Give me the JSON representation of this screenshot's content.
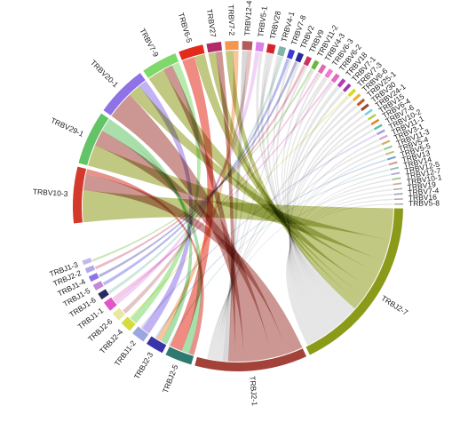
{
  "chart_data": {
    "type": "chord",
    "title": "",
    "groups": {
      "trbv": [
        "TRBV10-3",
        "TRBV29-1",
        "TRBV20-1",
        "TRBV7-9",
        "TRBV6-5",
        "TRBV27",
        "TRBV7-2",
        "TRBV12-4",
        "TRBV5-1",
        "TRBV28",
        "TRBV4-1",
        "TRBV7-8",
        "TRBV2",
        "TRBV9",
        "TRBV11-2",
        "TRBV4-3",
        "TRBV6-3",
        "TRBV6-2",
        "TRBV18",
        "TRBV7-1",
        "TRBV7-3",
        "TRBV6-6",
        "TRBV25-1",
        "TRBV30",
        "TRBV24-1",
        "TRBV15",
        "TRBV6-4",
        "TRBV7-6",
        "TRBV10-2",
        "TRBV11-1",
        "TRBV3-1",
        "TRBV11-3",
        "TRBV5-4",
        "TRBV5-5",
        "TRBV13",
        "TRBV14",
        "TRBV12-5",
        "TRBV12-7",
        "TRBV10-1",
        "TRBV19",
        "TRBV7-4",
        "TRBV16",
        "TRBV5-8"
      ],
      "trbj": [
        "TRBJ1-3",
        "TRBJ2-2",
        "TRBJ1-4",
        "TRBJ1-5",
        "TRBJ1-6",
        "TRBJ1-1",
        "TRBJ2-6",
        "TRBJ2-4",
        "TRBJ1-2",
        "TRBJ2-3",
        "TRBJ2-5",
        "TRBJ2-1",
        "TRBJ2-7"
      ]
    },
    "segments": [
      {
        "label": "TRBV10-3",
        "size": 5.0,
        "color": "#d43a2c"
      },
      {
        "label": "TRBV29-1",
        "size": 4.8,
        "color": "#62c466"
      },
      {
        "label": "TRBV20-1",
        "size": 4.6,
        "color": "#8e72e6"
      },
      {
        "label": "TRBV7-9",
        "size": 3.2,
        "color": "#7ed86a"
      },
      {
        "label": "TRBV6-5",
        "size": 2.2,
        "color": "#e32b1c"
      },
      {
        "label": "TRBV27",
        "size": 1.3,
        "color": "#b02c68"
      },
      {
        "label": "TRBV7-2",
        "size": 1.2,
        "color": "#f4964e"
      },
      {
        "label": "TRBV12-4",
        "size": 0.9,
        "color": "#b45a5a"
      },
      {
        "label": "TRBV5-1",
        "size": 0.7,
        "color": "#d982e8"
      },
      {
        "label": "TRBV28",
        "size": 0.7,
        "color": "#d4232b"
      },
      {
        "label": "TRBV4-1",
        "size": 0.6,
        "color": "#7fb6a8"
      },
      {
        "label": "TRBV7-8",
        "size": 0.5,
        "color": "#3a3ad4"
      },
      {
        "label": "TRBV2",
        "size": 0.5,
        "color": "#2a2a9a"
      },
      {
        "label": "TRBV9",
        "size": 0.45,
        "color": "#c8365a"
      },
      {
        "label": "TRBV11-2",
        "size": 0.4,
        "color": "#6fb43c"
      },
      {
        "label": "TRBV4-3",
        "size": 0.4,
        "color": "#e06ab0"
      },
      {
        "label": "TRBV6-3",
        "size": 0.4,
        "color": "#f07ad0"
      },
      {
        "label": "TRBV6-2",
        "size": 0.4,
        "color": "#e26ac0"
      },
      {
        "label": "TRBV18",
        "size": 0.35,
        "color": "#b83ab8"
      },
      {
        "label": "TRBV7-1",
        "size": 0.3,
        "color": "#9a38b0"
      },
      {
        "label": "TRBV7-3",
        "size": 0.3,
        "color": "#d8d82a"
      },
      {
        "label": "TRBV6-6",
        "size": 0.25,
        "color": "#f0b030"
      },
      {
        "label": "TRBV25-1",
        "size": 0.25,
        "color": "#c05830"
      },
      {
        "label": "TRBV30",
        "size": 0.25,
        "color": "#9a4a2a"
      },
      {
        "label": "TRBV24-1",
        "size": 0.2,
        "color": "#70d0e0"
      },
      {
        "label": "TRBV15",
        "size": 0.2,
        "color": "#b0d040"
      },
      {
        "label": "TRBV6-4",
        "size": 0.2,
        "color": "#e08030"
      },
      {
        "label": "TRBV7-6",
        "size": 0.2,
        "color": "#60c0a0"
      },
      {
        "label": "TRBV10-2",
        "size": 0.2,
        "color": "#a0a0e0"
      },
      {
        "label": "TRBV11-1",
        "size": 0.18,
        "color": "#e0a0d0"
      },
      {
        "label": "TRBV3-1",
        "size": 0.18,
        "color": "#d0b060"
      },
      {
        "label": "TRBV11-3",
        "size": 0.18,
        "color": "#9ad09a"
      },
      {
        "label": "TRBV5-4",
        "size": 0.16,
        "color": "#c0c070"
      },
      {
        "label": "TRBV5-5",
        "size": 0.16,
        "color": "#70a0d0"
      },
      {
        "label": "TRBV13",
        "size": 0.15,
        "color": "#d09090"
      },
      {
        "label": "TRBV14",
        "size": 0.15,
        "color": "#90c0c0"
      },
      {
        "label": "TRBV12-5",
        "size": 0.14,
        "color": "#b0a0d0"
      },
      {
        "label": "TRBV12-7",
        "size": 0.14,
        "color": "#a0c080"
      },
      {
        "label": "TRBV10-1",
        "size": 0.14,
        "color": "#c0b0a0"
      },
      {
        "label": "TRBV19",
        "size": 0.13,
        "color": "#b0b0b0"
      },
      {
        "label": "TRBV7-4",
        "size": 0.13,
        "color": "#a0a0c0"
      },
      {
        "label": "TRBV16",
        "size": 0.12,
        "color": "#c0a0a0"
      },
      {
        "label": "TRBV5-8",
        "size": 0.12,
        "color": "#a0b0a0"
      },
      {
        "label": "TRBJ2-7",
        "size": 16.0,
        "color": "#8c9a1a"
      },
      {
        "label": "TRBJ2-1",
        "size": 10.0,
        "color": "#a34238"
      },
      {
        "label": "TRBJ2-5",
        "size": 2.4,
        "color": "#2f7a70"
      },
      {
        "label": "TRBJ2-3",
        "size": 1.6,
        "color": "#3b34a8"
      },
      {
        "label": "TRBJ1-2",
        "size": 1.2,
        "color": "#9aa6e0"
      },
      {
        "label": "TRBJ2-4",
        "size": 1.0,
        "color": "#d4dc3e"
      },
      {
        "label": "TRBJ2-6",
        "size": 0.8,
        "color": "#e8e8a0"
      },
      {
        "label": "TRBJ1-1",
        "size": 0.9,
        "color": "#e055c8"
      },
      {
        "label": "TRBJ1-6",
        "size": 0.6,
        "color": "#2a2a60"
      },
      {
        "label": "TRBJ1-5",
        "size": 0.55,
        "color": "#c48ad8"
      },
      {
        "label": "TRBJ1-4",
        "size": 0.5,
        "color": "#8e72e6"
      },
      {
        "label": "TRBJ2-2",
        "size": 0.45,
        "color": "#b4a8e8"
      },
      {
        "label": "TRBJ1-3",
        "size": 0.4,
        "color": "#c0b8f0"
      }
    ],
    "links": [
      {
        "source": "TRBV10-3",
        "target": "TRBJ2-7",
        "value": 3.0
      },
      {
        "source": "TRBV10-3",
        "target": "TRBJ2-1",
        "value": 1.5
      },
      {
        "source": "TRBV10-3",
        "target": "TRBJ2-5",
        "value": 0.5
      },
      {
        "source": "TRBV29-1",
        "target": "TRBJ2-7",
        "value": 2.0
      },
      {
        "source": "TRBV29-1",
        "target": "TRBJ2-1",
        "value": 1.5
      },
      {
        "source": "TRBV29-1",
        "target": "TRBJ2-5",
        "value": 0.7
      },
      {
        "source": "TRBV29-1",
        "target": "TRBJ2-3",
        "value": 0.6
      },
      {
        "source": "TRBV20-1",
        "target": "TRBJ2-1",
        "value": 2.6
      },
      {
        "source": "TRBV20-1",
        "target": "TRBJ2-7",
        "value": 1.2
      },
      {
        "source": "TRBV20-1",
        "target": "TRBJ1-2",
        "value": 0.8
      },
      {
        "source": "TRBV7-9",
        "target": "TRBJ2-7",
        "value": 1.6
      },
      {
        "source": "TRBV7-9",
        "target": "TRBJ2-1",
        "value": 0.9
      },
      {
        "source": "TRBV7-9",
        "target": "TRBJ2-4",
        "value": 0.7
      },
      {
        "source": "TRBV6-5",
        "target": "TRBJ2-5",
        "value": 1.2
      },
      {
        "source": "TRBV6-5",
        "target": "TRBJ2-7",
        "value": 1.0
      },
      {
        "source": "TRBV27",
        "target": "TRBJ2-7",
        "value": 0.7
      },
      {
        "source": "TRBV27",
        "target": "TRBJ2-1",
        "value": 0.6
      },
      {
        "source": "TRBV7-2",
        "target": "TRBJ2-7",
        "value": 0.7
      },
      {
        "source": "TRBV7-2",
        "target": "TRBJ2-3",
        "value": 0.5
      },
      {
        "source": "TRBV12-4",
        "target": "TRBJ2-1",
        "value": 0.5
      },
      {
        "source": "TRBV12-4",
        "target": "TRBJ2-6",
        "value": 0.4
      },
      {
        "source": "TRBV5-1",
        "target": "TRBJ1-1",
        "value": 0.4
      },
      {
        "source": "TRBV5-1",
        "target": "TRBJ2-7",
        "value": 0.3
      },
      {
        "source": "TRBV28",
        "target": "TRBJ2-7",
        "value": 0.4
      },
      {
        "source": "TRBV28",
        "target": "TRBJ2-1",
        "value": 0.3
      },
      {
        "source": "TRBV4-1",
        "target": "TRBJ2-7",
        "value": 0.3
      },
      {
        "source": "TRBV4-1",
        "target": "TRBJ1-6",
        "value": 0.3
      },
      {
        "source": "TRBV7-8",
        "target": "TRBJ1-5",
        "value": 0.3
      },
      {
        "source": "TRBV7-8",
        "target": "TRBJ2-7",
        "value": 0.2
      },
      {
        "source": "TRBV2",
        "target": "TRBJ1-4",
        "value": 0.25
      },
      {
        "source": "TRBV2",
        "target": "TRBJ2-7",
        "value": 0.25
      },
      {
        "source": "TRBV9",
        "target": "TRBJ2-2",
        "value": 0.25
      },
      {
        "source": "TRBV9",
        "target": "TRBJ2-1",
        "value": 0.2
      },
      {
        "source": "TRBV11-2",
        "target": "TRBJ1-3",
        "value": 0.2
      },
      {
        "source": "TRBV11-2",
        "target": "TRBJ2-7",
        "value": 0.2
      },
      {
        "source": "TRBV4-3",
        "target": "TRBJ1-1",
        "value": 0.2
      },
      {
        "source": "TRBV4-3",
        "target": "TRBJ2-7",
        "value": 0.2
      },
      {
        "source": "TRBV6-3",
        "target": "TRBJ2-1",
        "value": 0.2
      },
      {
        "source": "TRBV6-3",
        "target": "TRBJ2-7",
        "value": 0.2
      },
      {
        "source": "TRBV6-2",
        "target": "TRBJ1-1",
        "value": 0.2
      },
      {
        "source": "TRBV6-2",
        "target": "TRBJ2-7",
        "value": 0.2
      },
      {
        "source": "TRBV18",
        "target": "TRBJ2-7",
        "value": 0.35
      },
      {
        "source": "TRBV7-1",
        "target": "TRBJ2-7",
        "value": 0.3
      },
      {
        "source": "TRBV7-3",
        "target": "TRBJ2-4",
        "value": 0.15
      },
      {
        "source": "TRBV7-3",
        "target": "TRBJ2-7",
        "value": 0.15
      },
      {
        "source": "TRBV6-6",
        "target": "TRBJ2-7",
        "value": 0.25
      },
      {
        "source": "TRBV25-1",
        "target": "TRBJ2-1",
        "value": 0.25
      },
      {
        "source": "TRBV30",
        "target": "TRBJ2-7",
        "value": 0.25
      },
      {
        "source": "TRBV24-1",
        "target": "TRBJ2-7",
        "value": 0.2
      },
      {
        "source": "TRBV15",
        "target": "TRBJ2-7",
        "value": 0.2
      },
      {
        "source": "TRBV6-4",
        "target": "TRBJ2-1",
        "value": 0.2
      },
      {
        "source": "TRBV7-6",
        "target": "TRBJ2-7",
        "value": 0.2
      },
      {
        "source": "TRBV10-2",
        "target": "TRBJ1-2",
        "value": 0.2
      },
      {
        "source": "TRBV11-1",
        "target": "TRBJ2-7",
        "value": 0.18
      },
      {
        "source": "TRBV3-1",
        "target": "TRBJ2-1",
        "value": 0.18
      },
      {
        "source": "TRBV11-3",
        "target": "TRBJ2-7",
        "value": 0.18
      },
      {
        "source": "TRBV5-4",
        "target": "TRBJ2-7",
        "value": 0.16
      },
      {
        "source": "TRBV5-5",
        "target": "TRBJ2-3",
        "value": 0.16
      },
      {
        "source": "TRBV13",
        "target": "TRBJ2-7",
        "value": 0.15
      },
      {
        "source": "TRBV14",
        "target": "TRBJ2-5",
        "value": 0.15
      },
      {
        "source": "TRBV12-5",
        "target": "TRBJ2-7",
        "value": 0.14
      },
      {
        "source": "TRBV12-7",
        "target": "TRBJ2-7",
        "value": 0.14
      },
      {
        "source": "TRBV10-1",
        "target": "TRBJ2-1",
        "value": 0.14
      },
      {
        "source": "TRBV19",
        "target": "TRBJ2-7",
        "value": 0.13
      },
      {
        "source": "TRBV7-4",
        "target": "TRBJ2-7",
        "value": 0.13
      },
      {
        "source": "TRBV16",
        "target": "TRBJ2-7",
        "value": 0.12
      },
      {
        "source": "TRBV5-8",
        "target": "TRBJ2-7",
        "value": 0.12
      }
    ]
  }
}
